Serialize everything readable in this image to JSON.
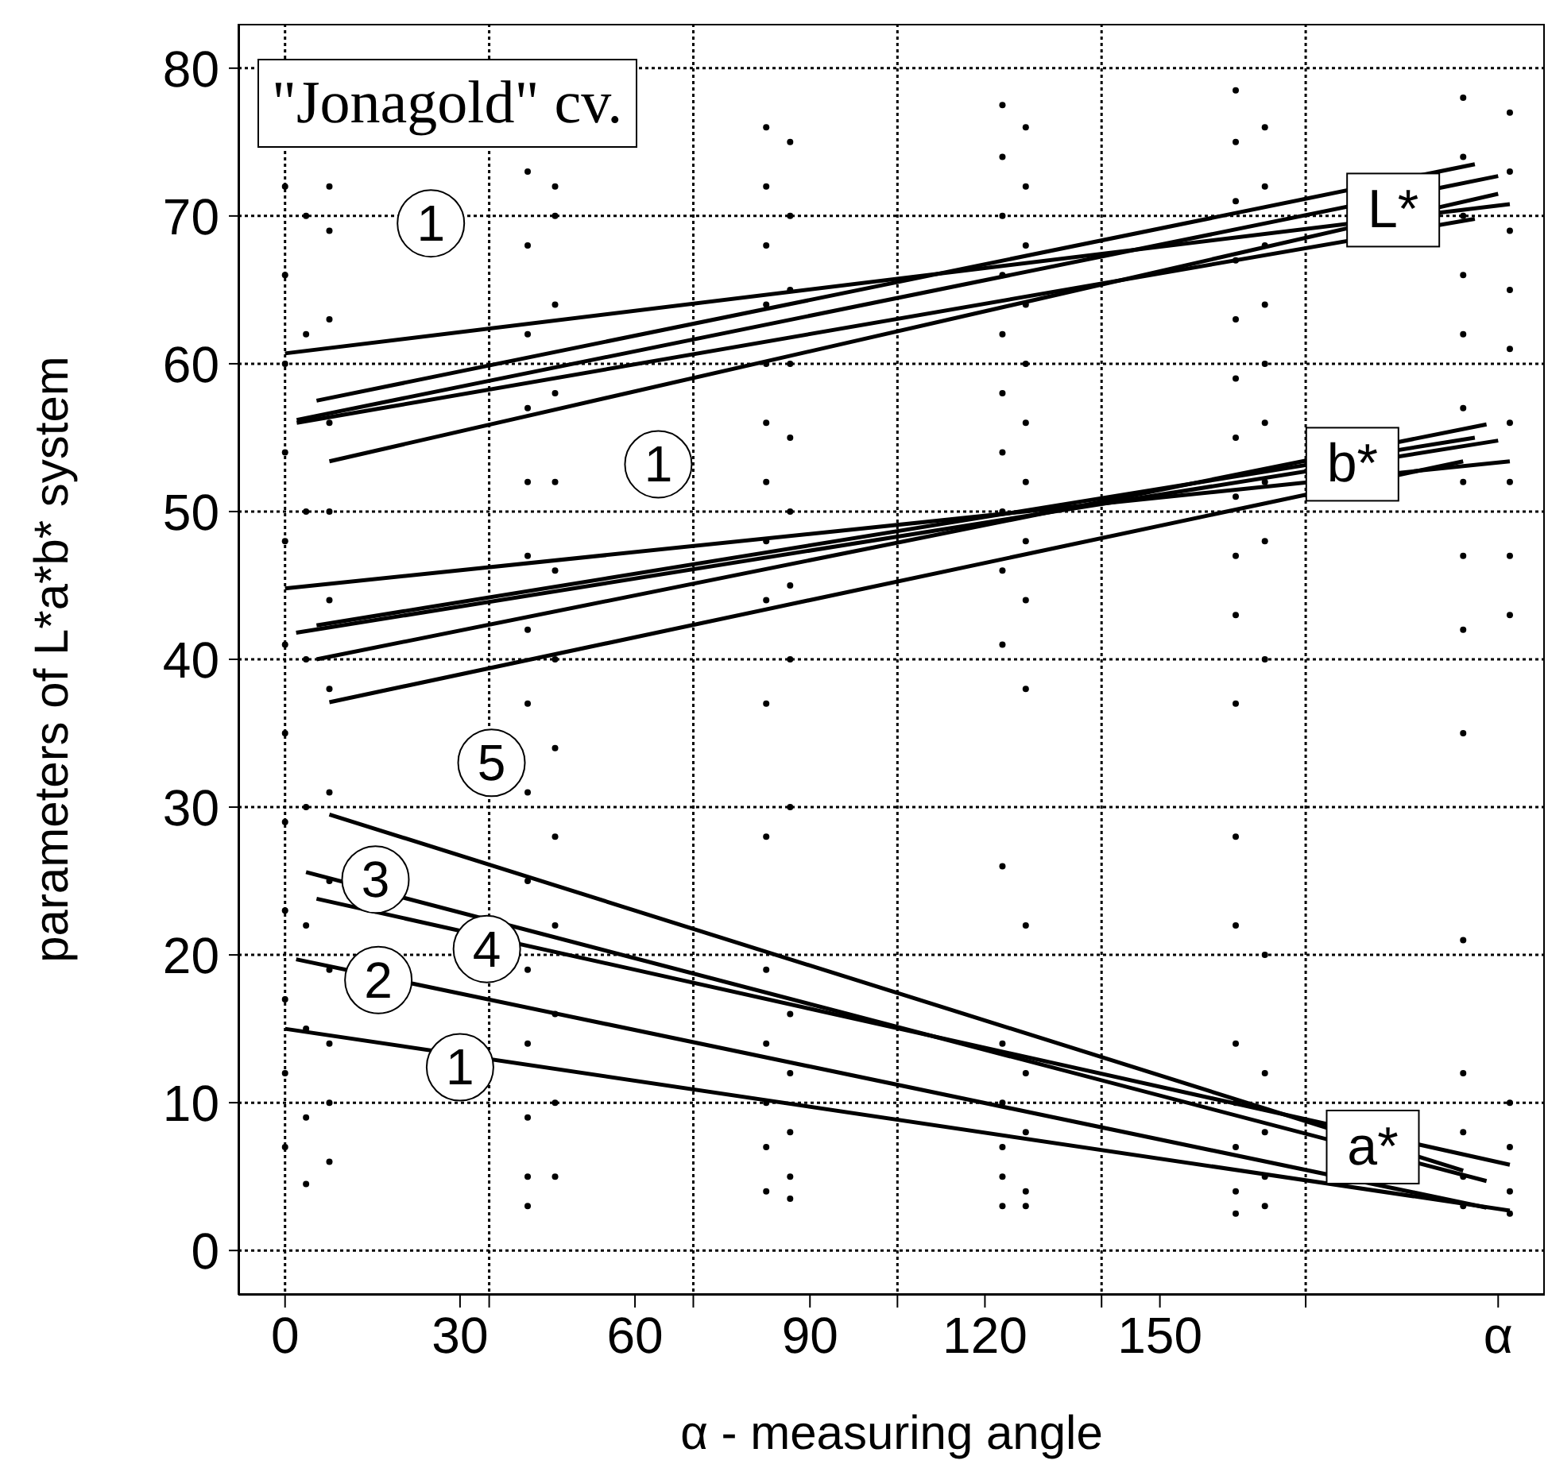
{
  "chart_data": {
    "type": "scatter",
    "title": "\"Jonagold\" cv.",
    "xlabel": "α - measuring angle",
    "ylabel": "parameters of L*a*b* system",
    "xlim": [
      -8,
      216
    ],
    "ylim": [
      -3,
      83
    ],
    "xticks": [
      {
        "value": 0,
        "label": "0"
      },
      30,
      {
        "value": 35,
        "label": null
      },
      60,
      {
        "value": 70,
        "label": null
      },
      90,
      {
        "value": 105,
        "label": null
      },
      120,
      {
        "value": 140,
        "label": null
      },
      150,
      {
        "value": 175,
        "label": null
      },
      {
        "value": 208,
        "label": "α"
      }
    ],
    "yticks": [
      0,
      10,
      20,
      30,
      40,
      50,
      60,
      70,
      80
    ],
    "grid": true,
    "series": [
      {
        "type": "scatter",
        "color": "#000000",
        "marker": "circle",
        "x": [
          0,
          0,
          0,
          0,
          0,
          0,
          0,
          0,
          0,
          0,
          0,
          0
        ],
        "values": [
          72,
          66,
          60,
          54,
          48,
          41,
          35,
          29,
          23,
          17,
          12,
          7
        ]
      },
      {
        "type": "scatter",
        "color": "#000000",
        "marker": "circle",
        "x": [
          3.6,
          3.6,
          3.6,
          3.6,
          3.6,
          3.6,
          3.6,
          3.6,
          3.6
        ],
        "values": [
          70,
          62,
          50,
          40,
          30,
          22,
          15,
          9,
          4.5
        ]
      },
      {
        "type": "scatter",
        "color": "#000000",
        "marker": "circle",
        "x": [
          7.6,
          7.6,
          7.6,
          7.6,
          7.6,
          7.6,
          7.6,
          7.6,
          7.6,
          7.6,
          7.6,
          7.6,
          7.6
        ],
        "values": [
          72,
          69,
          63,
          56,
          50,
          44,
          38,
          31,
          25,
          19,
          14,
          10,
          6
        ]
      },
      {
        "type": "scatter",
        "color": "#000000",
        "marker": "circle",
        "x": [
          41.6,
          41.6,
          41.6,
          41.6,
          41.6,
          41.6,
          41.6,
          41.6,
          41.6,
          41.6,
          41.6,
          41.6,
          41.6,
          41.6,
          41.6
        ],
        "values": [
          73,
          68,
          62,
          57,
          52,
          47,
          42,
          37,
          31,
          25,
          19,
          14,
          9,
          5,
          3
        ]
      },
      {
        "type": "scatter",
        "color": "#000000",
        "marker": "circle",
        "x": [
          46.3,
          46.3,
          46.3,
          46.3,
          46.3,
          46.3,
          46.3,
          46.3,
          46.3,
          46.3,
          46.3,
          46.3,
          46.3
        ],
        "values": [
          72,
          70,
          64,
          58,
          52,
          46,
          40,
          34,
          28,
          22,
          16,
          10,
          5
        ]
      },
      {
        "type": "scatter",
        "color": "#000000",
        "marker": "circle",
        "x": [
          82.5,
          82.5,
          82.5,
          82.5,
          82.5,
          82.5,
          82.5,
          82.5,
          82.5,
          82.5,
          82.5,
          82.5,
          82.5,
          82.5,
          82.5,
          82.5
        ],
        "values": [
          76,
          72,
          68,
          64,
          60,
          56,
          52,
          48,
          44,
          37,
          28,
          19,
          14,
          10,
          7,
          4
        ]
      },
      {
        "type": "scatter",
        "color": "#000000",
        "marker": "circle",
        "x": [
          86.6,
          86.6,
          86.6,
          86.6,
          86.6,
          86.6,
          86.6,
          86.6,
          86.6,
          86.6,
          86.6,
          86.6,
          86.6,
          86.6
        ],
        "values": [
          75,
          70,
          65,
          60,
          55,
          50,
          45,
          40,
          30,
          16,
          12,
          8,
          5,
          3.5
        ]
      },
      {
        "type": "scatter",
        "color": "#000000",
        "marker": "circle",
        "x": [
          123,
          123,
          123,
          123,
          123,
          123,
          123,
          123,
          123,
          123,
          123,
          123,
          123,
          123,
          123,
          123
        ],
        "values": [
          77.5,
          74,
          70,
          66,
          62,
          58,
          54,
          50,
          46,
          41,
          26,
          14,
          10,
          7,
          5,
          3
        ]
      },
      {
        "type": "scatter",
        "color": "#000000",
        "marker": "circle",
        "x": [
          127,
          127,
          127,
          127,
          127,
          127,
          127,
          127,
          127,
          127,
          127,
          127,
          127,
          127,
          127
        ],
        "values": [
          76,
          72,
          68,
          64,
          60,
          56,
          52,
          48,
          44,
          38,
          22,
          12,
          8,
          4,
          3
        ]
      },
      {
        "type": "scatter",
        "color": "#000000",
        "marker": "circle",
        "x": [
          163,
          163,
          163,
          163,
          163,
          163,
          163,
          163,
          163,
          163,
          163,
          163,
          163,
          163,
          163,
          163,
          163,
          163
        ],
        "values": [
          78.5,
          75,
          71,
          67,
          63,
          59,
          55,
          51,
          47,
          43,
          37,
          28,
          22,
          14,
          10,
          7,
          4,
          2.5
        ]
      },
      {
        "type": "scatter",
        "color": "#000000",
        "marker": "circle",
        "x": [
          168,
          168,
          168,
          168,
          168,
          168,
          168,
          168,
          168,
          168,
          168,
          168,
          168,
          168
        ],
        "values": [
          76,
          72,
          68,
          64,
          60,
          56,
          52,
          48,
          40,
          20,
          12,
          8,
          5,
          3
        ]
      },
      {
        "type": "scatter",
        "color": "#000000",
        "marker": "circle",
        "x": [
          202,
          202,
          202,
          202,
          202,
          202,
          202,
          202,
          202,
          202,
          202,
          202,
          202,
          202,
          202
        ],
        "values": [
          78,
          74,
          70,
          66,
          62,
          57,
          52,
          47,
          42,
          35,
          21,
          12,
          8,
          5,
          3
        ]
      },
      {
        "type": "scatter",
        "color": "#000000",
        "marker": "circle",
        "x": [
          210,
          210,
          210,
          210,
          210,
          210,
          210,
          210,
          210,
          210,
          210,
          210,
          210
        ],
        "values": [
          77,
          73,
          69,
          65,
          61,
          56,
          52,
          47,
          43,
          10,
          7,
          4,
          2.5
        ]
      },
      {
        "type": "line",
        "color": "#000000",
        "x": [
          0,
          210
        ],
        "values": [
          60.7,
          70.8
        ]
      },
      {
        "type": "line",
        "color": "#000000",
        "x": [
          5.4,
          204
        ],
        "values": [
          57.5,
          73.5
        ]
      },
      {
        "type": "line",
        "color": "#000000",
        "x": [
          2,
          208
        ],
        "values": [
          56.2,
          72.7
        ]
      },
      {
        "type": "line",
        "color": "#000000",
        "x": [
          2,
          204
        ],
        "values": [
          56,
          69.8
        ]
      },
      {
        "type": "line",
        "color": "#000000",
        "x": [
          7.6,
          208
        ],
        "values": [
          53.4,
          71.5
        ]
      },
      {
        "type": "line",
        "color": "#000000",
        "x": [
          0,
          210
        ],
        "values": [
          44.8,
          53.4
        ]
      },
      {
        "type": "line",
        "color": "#000000",
        "x": [
          1.9,
          208
        ],
        "values": [
          41.8,
          54.8
        ]
      },
      {
        "type": "line",
        "color": "#000000",
        "x": [
          5.4,
          204
        ],
        "values": [
          42.3,
          55
        ]
      },
      {
        "type": "line",
        "color": "#000000",
        "x": [
          5.4,
          206
        ],
        "values": [
          40,
          55.9
        ]
      },
      {
        "type": "line",
        "color": "#000000",
        "x": [
          7.6,
          202
        ],
        "values": [
          37.1,
          53.4
        ]
      },
      {
        "type": "line",
        "color": "#000000",
        "x": [
          0,
          210
        ],
        "values": [
          15,
          2.7
        ]
      },
      {
        "type": "line",
        "color": "#000000",
        "x": [
          1.9,
          206
        ],
        "values": [
          19.7,
          2.9
        ]
      },
      {
        "type": "line",
        "color": "#000000",
        "x": [
          3.6,
          206
        ],
        "values": [
          25.6,
          4.7
        ]
      },
      {
        "type": "line",
        "color": "#000000",
        "x": [
          5.4,
          210
        ],
        "values": [
          23.8,
          5.8
        ]
      },
      {
        "type": "line",
        "color": "#000000",
        "x": [
          7.6,
          202
        ],
        "values": [
          29.5,
          5.4
        ]
      }
    ],
    "annotations": [
      {
        "text": "1",
        "x": 25,
        "y": 69.5
      },
      {
        "text": "1",
        "x": 64,
        "y": 53.2
      },
      {
        "text": "5",
        "x": 35.4,
        "y": 33
      },
      {
        "text": "3",
        "x": 15.5,
        "y": 25.1
      },
      {
        "text": "4",
        "x": 34.6,
        "y": 20.4
      },
      {
        "text": "2",
        "x": 16,
        "y": 18.3
      },
      {
        "text": "1",
        "x": 30,
        "y": 12.4
      },
      {
        "text": "L*",
        "x": 190,
        "y": 70.4
      },
      {
        "text": "b*",
        "x": 183,
        "y": 53.2
      },
      {
        "text": "a*",
        "x": 186.5,
        "y": 7
      }
    ]
  }
}
